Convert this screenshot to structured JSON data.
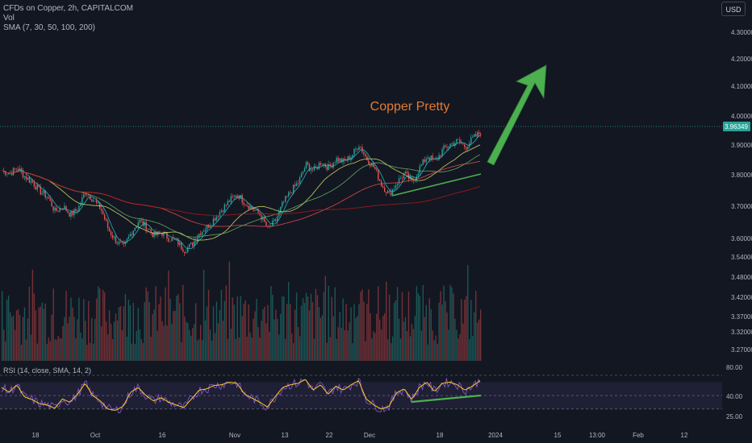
{
  "header": {
    "symbol_line": "CFDs on Copper, 2h, CAPITALCOM",
    "vol_label": "Vol",
    "sma_label": "SMA (7, 30, 50, 100, 200)"
  },
  "currency_button": "USD",
  "annotation": {
    "title": "Copper Pretty",
    "title_color": "#e37b2e",
    "arrow_color": "#4caf50",
    "trendline_color": "#4caf50"
  },
  "rsi_label": "RSI (14, close, SMA, 14, 2)",
  "colors": {
    "background": "#131722",
    "up": "#26a69a",
    "down": "#ef5350",
    "price_line": "#26a69a",
    "rsi_line": "#7e57c2",
    "rsi_sma": "#ffca28"
  },
  "chart_data": {
    "type": "candlestick",
    "price_axis_ticks": [
      "4.30000",
      "4.20000",
      "4.10000",
      "4.00000",
      "3.90000",
      "3.80000",
      "3.70000",
      "3.60000",
      "3.54000",
      "3.48000",
      "3.42000",
      "3.37000",
      "3.32000",
      "3.27000"
    ],
    "rsi_axis_ticks": [
      "80.00",
      "40.00",
      "25.00"
    ],
    "current_price": "3.96349",
    "x_ticks": [
      "18",
      "Oct",
      "16",
      "Nov",
      "13",
      "22",
      "Dec",
      "18",
      "2024",
      "15",
      "13:00",
      "Feb",
      "12"
    ],
    "close_series": [
      3.83,
      3.82,
      3.84,
      3.81,
      3.79,
      3.76,
      3.74,
      3.69,
      3.71,
      3.68,
      3.7,
      3.76,
      3.73,
      3.7,
      3.63,
      3.59,
      3.57,
      3.62,
      3.66,
      3.64,
      3.61,
      3.62,
      3.6,
      3.59,
      3.56,
      3.58,
      3.62,
      3.64,
      3.67,
      3.7,
      3.73,
      3.75,
      3.72,
      3.7,
      3.68,
      3.63,
      3.66,
      3.72,
      3.76,
      3.79,
      3.85,
      3.83,
      3.86,
      3.84,
      3.87,
      3.86,
      3.88,
      3.92,
      3.87,
      3.84,
      3.78,
      3.75,
      3.79,
      3.82,
      3.79,
      3.84,
      3.88,
      3.86,
      3.9,
      3.92,
      3.93,
      3.91,
      3.94,
      3.96
    ],
    "sma_lines": [
      "SMA 7",
      "SMA 30",
      "SMA 50",
      "SMA 100",
      "SMA 200"
    ],
    "rsi_series": [
      62,
      55,
      66,
      48,
      44,
      38,
      36,
      31,
      45,
      40,
      52,
      68,
      50,
      42,
      30,
      28,
      34,
      55,
      62,
      50,
      42,
      47,
      40,
      36,
      32,
      45,
      58,
      60,
      65,
      66,
      70,
      68,
      52,
      46,
      40,
      33,
      48,
      62,
      66,
      68,
      74,
      58,
      66,
      52,
      64,
      58,
      66,
      72,
      45,
      36,
      30,
      34,
      54,
      60,
      44,
      62,
      70,
      56,
      68,
      70,
      66,
      58,
      64,
      72
    ]
  }
}
